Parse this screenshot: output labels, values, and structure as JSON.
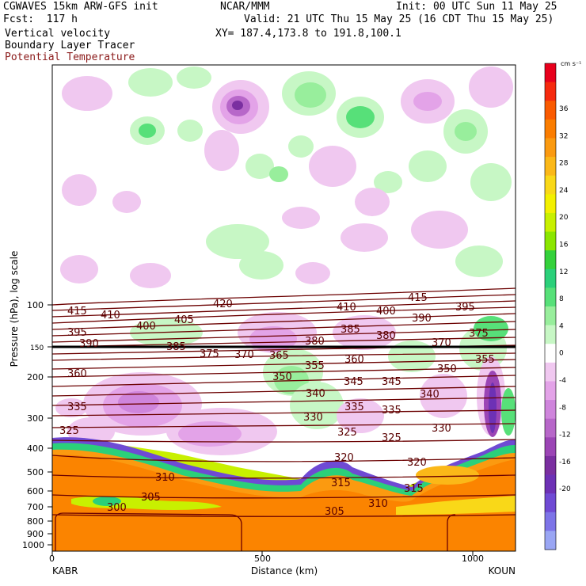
{
  "header": {
    "model": "CGWAVES 15km ARW-GFS init",
    "fcst": "Fcst:  117 h",
    "field1": "Vertical velocity",
    "field2": "Boundary Layer Tracer",
    "field3": "Potential Temperature",
    "center": "NCAR/MMM",
    "init": "Init: 00 UTC Sun 11 May 25",
    "valid": "Valid: 21 UTC Thu 15 May 25 (16 CDT Thu 15 May 25)",
    "xy": "XY= 187.4,173.8 to 191.8,100.1"
  },
  "colors": {
    "theta": "#6b0000",
    "field3_label": "#8b1a1a"
  },
  "chart_data": {
    "type": "cross-section",
    "xlabel": "Distance (km)",
    "ylabel": "Pressure (hPa), log scale",
    "x_ticks": [
      "0",
      "500",
      "1000"
    ],
    "x_ends": {
      "left": "KABR",
      "right": "KOUN"
    },
    "xlim": [
      0,
      1100
    ],
    "y_ticks": [
      "100",
      "150",
      "200",
      "300",
      "400",
      "500",
      "600",
      "700",
      "800",
      "900",
      "1000"
    ],
    "y_scale": "log",
    "colorbar": {
      "units": "cm s⁻¹",
      "labels": [
        "36",
        "32",
        "28",
        "24",
        "20",
        "16",
        "12",
        "8",
        "4",
        "0",
        "-4",
        "-8",
        "-12",
        "-16",
        "-20"
      ],
      "colors": [
        "#e8001c",
        "#f62a0e",
        "#fa5a00",
        "#fb7d00",
        "#fb9a10",
        "#fbb818",
        "#f9d818",
        "#f3f000",
        "#c8f000",
        "#8be600",
        "#34d13b",
        "#2bd07a",
        "#57e079",
        "#98ee9c",
        "#c7f7c5",
        "#ffffff",
        "#f0c8f0",
        "#e3a3e8",
        "#cf85dc",
        "#b767c9",
        "#9b45b5",
        "#7a2fa0",
        "#6d31b5",
        "#6f4ad4",
        "#7d74e8",
        "#9aa6f4"
      ]
    },
    "theta_contour_labels": [
      "420",
      "415",
      "410",
      "410",
      "415",
      "405",
      "400",
      "400",
      "395",
      "395",
      "390",
      "390",
      "385",
      "385",
      "380",
      "380",
      "375",
      "375",
      "370",
      "370",
      "365",
      "360",
      "360",
      "355",
      "355",
      "350",
      "350",
      "345",
      "345",
      "340",
      "340",
      "335",
      "335",
      "335",
      "330",
      "330",
      "325",
      "325",
      "325",
      "320",
      "320",
      "315",
      "315",
      "310",
      "310",
      "305",
      "305",
      "300"
    ]
  }
}
